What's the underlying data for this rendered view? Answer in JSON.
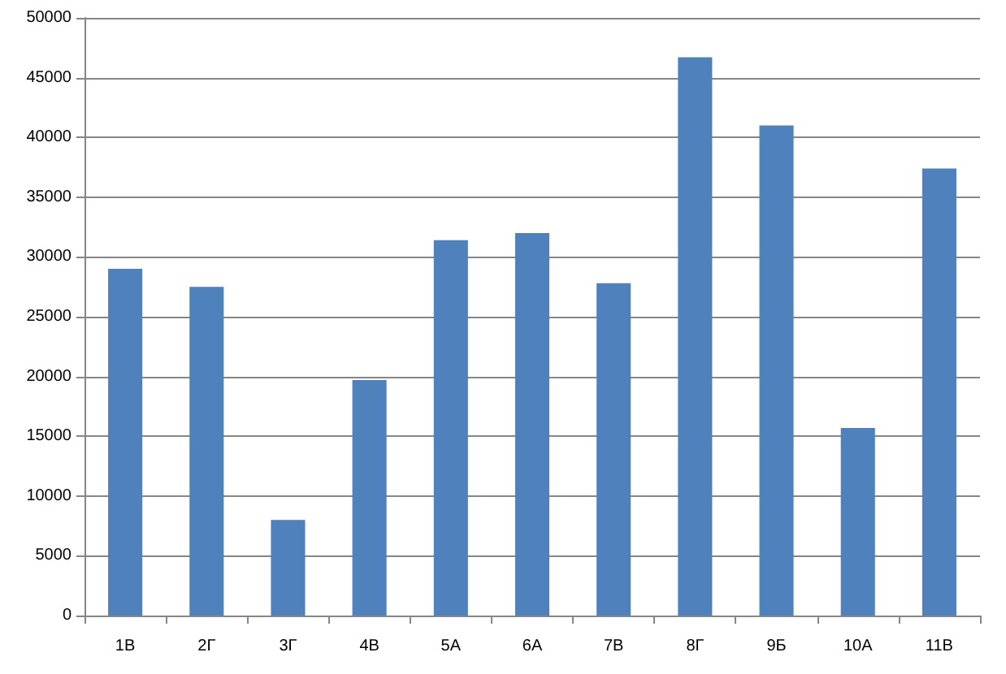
{
  "chart_data": {
    "type": "bar",
    "categories": [
      "1В",
      "2Г",
      "3Г",
      "4В",
      "5А",
      "6А",
      "7В",
      "8Г",
      "9Б",
      "10А",
      "11В"
    ],
    "values": [
      29000,
      27500,
      8000,
      19700,
      31400,
      32000,
      27800,
      46700,
      41000,
      15700,
      37400
    ],
    "color": "#4f81bd",
    "ylim": [
      0,
      50000
    ],
    "yticks": [
      0,
      5000,
      10000,
      15000,
      20000,
      25000,
      30000,
      35000,
      40000,
      45000,
      50000
    ],
    "grid": "y"
  }
}
